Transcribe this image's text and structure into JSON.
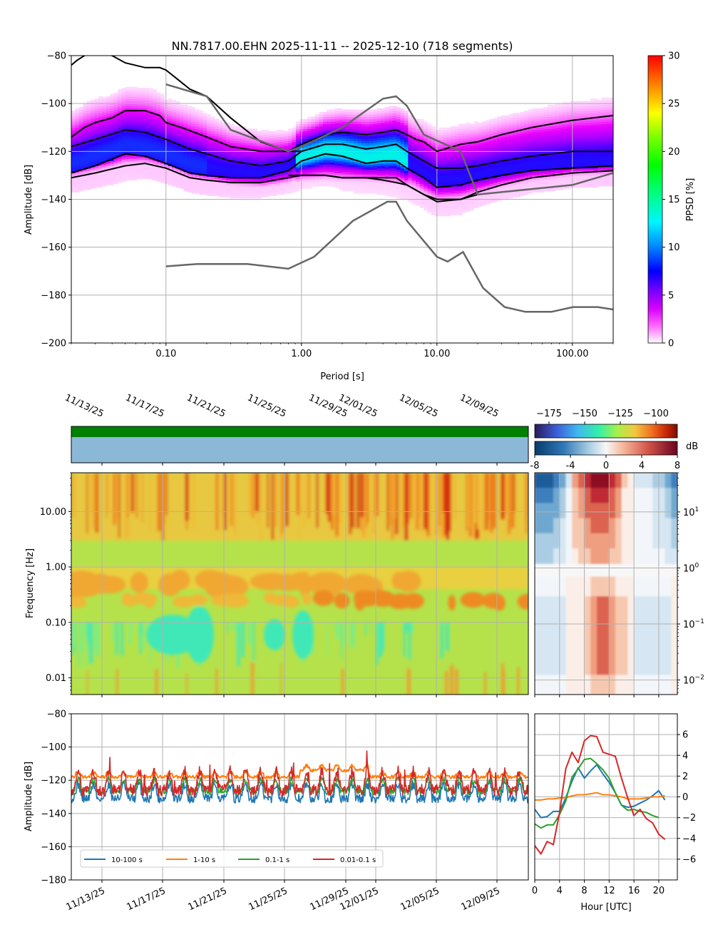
{
  "title": "NN.7817.00.EHN   2025-11-11 -- 2025-12-10  (718 segments)",
  "chart_data": [
    {
      "id": "ppsd",
      "type": "heatmap",
      "title": "NN.7817.00.EHN   2025-11-11 -- 2025-12-10  (718 segments)",
      "xlabel": "Period [s]",
      "ylabel": "Amplitude [dB]",
      "xscale": "log",
      "xlim": [
        0.02,
        200
      ],
      "ylim": [
        -200,
        -80
      ],
      "xticks": [
        0.1,
        1,
        10,
        100
      ],
      "xticklabels": [
        "0.10",
        "1.00",
        "10.00",
        "100.00"
      ],
      "yticks": [
        -200,
        -180,
        -160,
        -140,
        -120,
        -100,
        -80
      ],
      "yticklabels": [
        "−200",
        "−180",
        "−160",
        "−140",
        "−120",
        "−100",
        "−80"
      ],
      "grid": true,
      "colorbar": {
        "label": "PPSD [%]",
        "range": [
          0,
          30
        ],
        "ticks": [
          "0",
          "5",
          "10",
          "15",
          "20",
          "25",
          "30"
        ]
      },
      "percentile_lines": [
        {
          "name": "upper",
          "x": [
            0.02,
            0.025,
            0.03,
            0.04,
            0.05,
            0.07,
            0.09,
            0.1,
            0.13,
            0.2,
            0.3,
            0.5,
            0.8,
            1.0,
            1.5,
            2,
            3,
            4,
            5,
            6,
            7,
            8,
            10,
            15,
            20,
            30,
            50,
            100,
            200
          ],
          "y": [
            -114,
            -110,
            -108,
            -106,
            -103,
            -103,
            -105,
            -108,
            -110,
            -114,
            -118,
            -120,
            -120,
            -117,
            -113,
            -112,
            -113,
            -112,
            -111,
            -113,
            -115,
            -116,
            -120,
            -117,
            -116,
            -113,
            -110,
            -107,
            -105
          ]
        },
        {
          "name": "mean",
          "x": [
            0.02,
            0.03,
            0.05,
            0.07,
            0.1,
            0.15,
            0.2,
            0.3,
            0.5,
            0.8,
            1.0,
            1.5,
            2,
            3,
            4,
            5,
            6,
            8,
            10,
            15,
            20,
            30,
            50,
            100,
            200
          ],
          "y": [
            -118,
            -115,
            -111,
            -112,
            -115,
            -119,
            -121,
            -124,
            -126,
            -124,
            -120,
            -117,
            -117,
            -119,
            -118,
            -117,
            -120,
            -124,
            -127,
            -127,
            -126,
            -124,
            -122,
            -120,
            -120
          ]
        },
        {
          "name": "mode",
          "x": [
            0.02,
            0.03,
            0.05,
            0.07,
            0.1,
            0.15,
            0.2,
            0.3,
            0.5,
            0.8,
            1.0,
            1.5,
            2,
            3,
            4,
            5,
            6,
            8,
            10,
            15,
            20,
            30,
            50,
            100,
            200
          ],
          "y": [
            -129,
            -126,
            -121,
            -122,
            -125,
            -129,
            -130,
            -131,
            -131,
            -128,
            -124,
            -121,
            -122,
            -125,
            -124,
            -124,
            -127,
            -131,
            -135,
            -134,
            -132,
            -130,
            -128,
            -127,
            -126
          ]
        },
        {
          "name": "lower",
          "x": [
            0.02,
            0.03,
            0.05,
            0.07,
            0.1,
            0.15,
            0.2,
            0.3,
            0.5,
            1.0,
            1.5,
            2,
            3,
            4,
            5,
            6,
            8,
            10,
            15,
            20,
            30,
            50,
            100,
            200
          ],
          "y": [
            -131,
            -129,
            -126,
            -125,
            -127,
            -131,
            -132,
            -133,
            -133,
            -130,
            -130,
            -131,
            -131,
            -132,
            -133,
            -134,
            -138,
            -141,
            -140,
            -137,
            -134,
            -131,
            -129,
            -128
          ]
        },
        {
          "name": "max",
          "x": [
            0.02,
            0.022,
            0.025,
            0.03,
            0.04,
            0.05,
            0.07,
            0.09,
            0.1,
            0.15,
            0.2,
            0.3,
            0.5,
            0.8,
            1.0
          ],
          "y": [
            -84,
            -82,
            -80,
            -78,
            -80,
            -83,
            -85,
            -85,
            -86,
            -94,
            -97,
            -106,
            -116,
            -120,
            -120
          ]
        },
        {
          "name": "min",
          "x": [
            0.8,
            1.0,
            1.5,
            2,
            3,
            5,
            6,
            8,
            10,
            15,
            20
          ],
          "y": [
            -130,
            -130,
            -130,
            -131,
            -131,
            -131,
            -134,
            -138,
            -140,
            -140,
            -138
          ]
        }
      ],
      "noise_models": [
        {
          "name": "NHNM",
          "x": [
            0.1,
            0.2,
            0.3,
            0.8,
            1.0,
            2,
            4,
            5,
            6,
            8,
            15,
            20,
            30,
            100,
            200
          ],
          "y": [
            -92,
            -97,
            -111,
            -120,
            -118,
            -110,
            -98,
            -97,
            -101,
            -113,
            -120,
            -138,
            -137,
            -134,
            -129
          ]
        },
        {
          "name": "NLNM",
          "x": [
            0.1,
            0.17,
            0.4,
            0.8,
            1.24,
            2.4,
            4.3,
            5,
            6,
            10,
            12,
            15.6,
            21.9,
            31.6,
            45,
            70,
            101,
            154,
            200
          ],
          "y": [
            -168,
            -167,
            -167,
            -169,
            -164,
            -149,
            -141,
            -141,
            -149,
            -164,
            -166,
            -162,
            -177,
            -185,
            -187,
            -187,
            -185,
            -185,
            -186
          ]
        }
      ]
    },
    {
      "id": "spectrogram",
      "type": "heatmap",
      "ylabel": "Frequency [Hz]",
      "yscale": "log",
      "ylim": [
        0.005,
        50
      ],
      "yticks": [
        0.01,
        0.1,
        1,
        10
      ],
      "yticklabels": [
        "0.01",
        "0.10",
        "1.00",
        "10.00"
      ],
      "xticklabels": [
        "11/13/25",
        "11/17/25",
        "11/21/25",
        "11/25/25",
        "11/29/25",
        "12/01/25",
        "12/05/25",
        "12/09/25"
      ],
      "colorbar": {
        "range": [
          -185,
          -85
        ],
        "ticks": [
          "−175",
          "−150",
          "−125",
          "−100"
        ]
      },
      "availability_bars": [
        "data-coverage",
        "gap-indicator"
      ]
    },
    {
      "id": "diurnal",
      "type": "heatmap",
      "yscale": "log",
      "yticks": [
        0.01,
        0.1,
        1,
        10
      ],
      "yticklabels": [
        "10<sup>−2</sup>",
        "10<sup>−1</sup>",
        "10<sup>0</sup>",
        "10<sup>1</sup>"
      ],
      "colorbar": {
        "label": "dB",
        "range": [
          -8,
          8
        ],
        "ticks": [
          "-8",
          "-4",
          "0",
          "4",
          "8"
        ]
      }
    },
    {
      "id": "band_timeseries",
      "type": "line",
      "ylabel": "Amplitude [dB]",
      "ylim": [
        -180,
        -80
      ],
      "yticks": [
        -180,
        -160,
        -140,
        -120,
        -100,
        -80
      ],
      "yticklabels": [
        "−180",
        "−160",
        "−140",
        "−120",
        "−100",
        "−80"
      ],
      "xticklabels": [
        "11/13/25",
        "11/17/25",
        "11/21/25",
        "11/25/25",
        "11/29/25",
        "12/01/25",
        "12/05/25",
        "12/09/25"
      ],
      "series": [
        {
          "name": "10-100 s",
          "color": "#1f77b4",
          "baseline": -128,
          "spread": 6
        },
        {
          "name": "1-10 s",
          "color": "#ff7f0e",
          "baseline": -117,
          "spread": 2
        },
        {
          "name": "0.1-1 s",
          "color": "#2ca02c",
          "baseline": -124,
          "spread": 5
        },
        {
          "name": "0.01-0.1 s",
          "color": "#d62728",
          "baseline": -122,
          "spread": 8
        }
      ],
      "legend": "lower-left"
    },
    {
      "id": "diurnal_bands",
      "type": "line",
      "xlabel": "Hour [UTC]",
      "xlim": [
        0,
        23
      ],
      "ylim": [
        -8,
        8
      ],
      "xticks": [
        0,
        4,
        8,
        12,
        16,
        20
      ],
      "xticklabels": [
        "0",
        "4",
        "8",
        "12",
        "16",
        "20"
      ],
      "yticks": [
        -6,
        -4,
        -2,
        0,
        2,
        4,
        6
      ],
      "yticklabels": [
        "−6",
        "−4",
        "−2",
        "0",
        "2",
        "4",
        "6"
      ],
      "x": [
        0,
        1,
        2,
        3,
        4,
        5,
        6,
        7,
        8,
        9,
        10,
        11,
        12,
        13,
        14,
        15,
        16,
        17,
        18,
        19,
        20,
        21,
        22
      ],
      "series": [
        {
          "name": "10-100 s",
          "color": "#1f77b4",
          "values": [
            -1.2,
            -2.0,
            -1.9,
            -1.4,
            -1.4,
            -0.1,
            1.5,
            2.8,
            1.8,
            2.5,
            3.1,
            2.2,
            1.4,
            0.4,
            -0.8,
            -1.0,
            -0.9,
            -0.6,
            -0.3,
            0.1,
            0.6,
            -0.3,
            null
          ]
        },
        {
          "name": "1-10 s",
          "color": "#ff7f0e",
          "values": [
            -0.3,
            -0.3,
            -0.2,
            -0.2,
            -0.1,
            -0.1,
            0.1,
            0.2,
            0.2,
            0.3,
            0.4,
            0.2,
            0.2,
            0.1,
            0.0,
            -0.2,
            -0.2,
            -0.2,
            -0.1,
            0.0,
            0.0,
            0.1,
            null
          ]
        },
        {
          "name": "0.1-1 s",
          "color": "#2ca02c",
          "values": [
            -2.6,
            -3.0,
            -2.7,
            -2.7,
            -1.7,
            -0.4,
            1.9,
            2.7,
            3.6,
            3.7,
            3.2,
            2.6,
            1.8,
            0.4,
            -0.8,
            -1.3,
            -1.2,
            -1.4,
            -1.5,
            -1.8,
            -2.0,
            null,
            null
          ]
        },
        {
          "name": "0.01-0.1 s",
          "color": "#d62728",
          "values": [
            -4.7,
            -5.5,
            -4.3,
            -4.6,
            -1.5,
            2.7,
            4.3,
            3.3,
            5.4,
            5.9,
            5.8,
            4.3,
            4.1,
            3.9,
            1.8,
            -0.1,
            -1.8,
            -1.2,
            -2.1,
            -2.5,
            -3.6,
            -4.1,
            null
          ]
        }
      ]
    }
  ]
}
